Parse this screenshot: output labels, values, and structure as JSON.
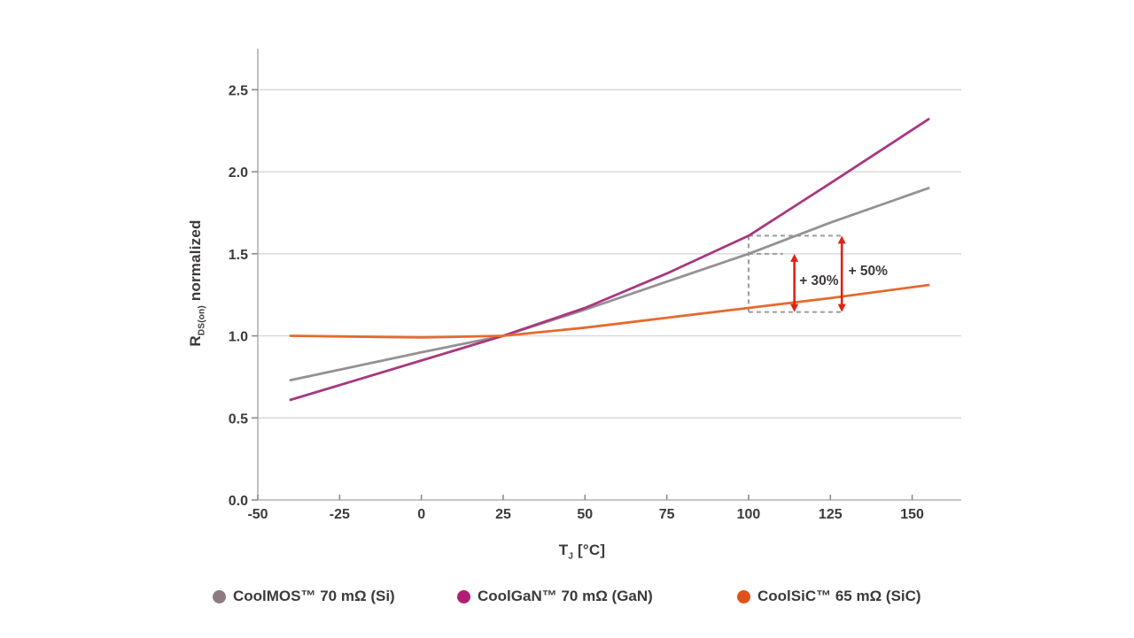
{
  "chart_data": {
    "type": "line",
    "title": "",
    "xlabel_main": "T",
    "xlabel_sub": "J",
    "xlabel_unit": " [°C]",
    "ylabel_main": "R",
    "ylabel_sub": "DS(on)",
    "ylabel_rest": " normalized",
    "xlim": [
      -50,
      165
    ],
    "ylim": [
      0,
      2.75
    ],
    "xticks": [
      -50,
      -25,
      0,
      25,
      50,
      75,
      100,
      125,
      150
    ],
    "xtick_labels": [
      "-50",
      "-25",
      "0",
      "25",
      "50",
      "75",
      "100",
      "125",
      "150"
    ],
    "yticks": [
      0,
      0.5,
      1.0,
      1.5,
      2.0,
      2.5
    ],
    "ytick_labels": [
      "0.0",
      "0.5",
      "1.0",
      "1.5",
      "2.0",
      "2.5"
    ],
    "grid": "horizontal",
    "legend_position": "bottom",
    "style": {
      "grid_color": "#DCD9D9",
      "axis_color": "#B5B1B2",
      "tick_color": "#8F8B8C",
      "text_color": "#3D393C",
      "dashed_color": "#9B9B9B",
      "arrow_color": "#DD2315"
    },
    "series": [
      {
        "id": "coolmos",
        "name": "CoolMOS™ 70 mΩ (Si)",
        "color": "#969094",
        "dot_color": "#8C7B80",
        "points": [
          [
            -40,
            0.73
          ],
          [
            0,
            0.9
          ],
          [
            25,
            1.0
          ],
          [
            50,
            1.16
          ],
          [
            75,
            1.33
          ],
          [
            100,
            1.5
          ],
          [
            125,
            1.69
          ],
          [
            155,
            1.9
          ]
        ]
      },
      {
        "id": "coolgan",
        "name": "CoolGaN™ 70 mΩ (GaN)",
        "color": "#A8387F",
        "dot_color": "#B01E73",
        "points": [
          [
            -40,
            0.61
          ],
          [
            0,
            0.85
          ],
          [
            25,
            1.0
          ],
          [
            50,
            1.17
          ],
          [
            75,
            1.38
          ],
          [
            100,
            1.61
          ],
          [
            125,
            1.93
          ],
          [
            155,
            2.32
          ]
        ]
      },
      {
        "id": "coolsic",
        "name": "CoolSiC™ 65 mΩ (SiC)",
        "color": "#E56A2E",
        "dot_color": "#E2511C",
        "points": [
          [
            -40,
            1.0
          ],
          [
            0,
            0.99
          ],
          [
            25,
            1.0
          ],
          [
            50,
            1.05
          ],
          [
            75,
            1.11
          ],
          [
            100,
            1.17
          ],
          [
            125,
            1.23
          ],
          [
            155,
            1.31
          ]
        ]
      }
    ],
    "annotations": {
      "box": {
        "x_left": 100,
        "x_right": 128.5,
        "top": 1.61,
        "bottom": 1.145
      },
      "mid_line": {
        "y": 1.5,
        "x1": 100,
        "x2": 110.5
      },
      "arrows": [
        {
          "x": 114,
          "y1": 1.145,
          "y2": 1.5,
          "label": "+ 30%",
          "label_x": 115.5,
          "label_y": 1.31
        },
        {
          "x": 128.5,
          "y1": 1.145,
          "y2": 1.61,
          "label": "+ 50%",
          "label_x": 130.5,
          "label_y": 1.37
        }
      ]
    }
  }
}
